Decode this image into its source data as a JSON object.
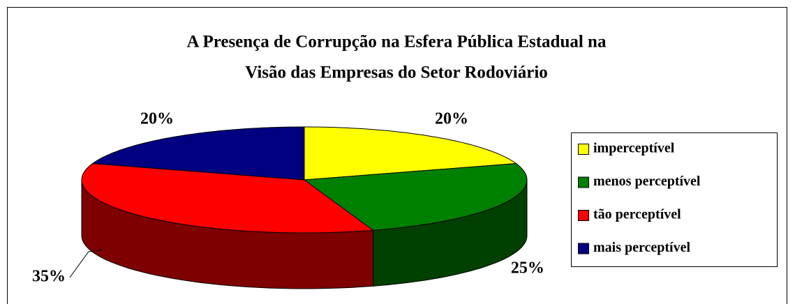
{
  "chart_data": {
    "type": "pie3d",
    "title": [
      "A Presença de Corrupção na Esfera Pública Estadual na",
      "Visão  das Empresas do Setor Rodoviário"
    ],
    "categories": [
      "imperceptível",
      "menos perceptível",
      "tão perceptível",
      "mais perceptível"
    ],
    "values": [
      20,
      25,
      35,
      20
    ],
    "value_labels": [
      "20%",
      "25%",
      "35%",
      "20%"
    ],
    "colors": [
      "#ffff00",
      "#008000",
      "#ff0000",
      "#000080"
    ],
    "legend": "right"
  }
}
